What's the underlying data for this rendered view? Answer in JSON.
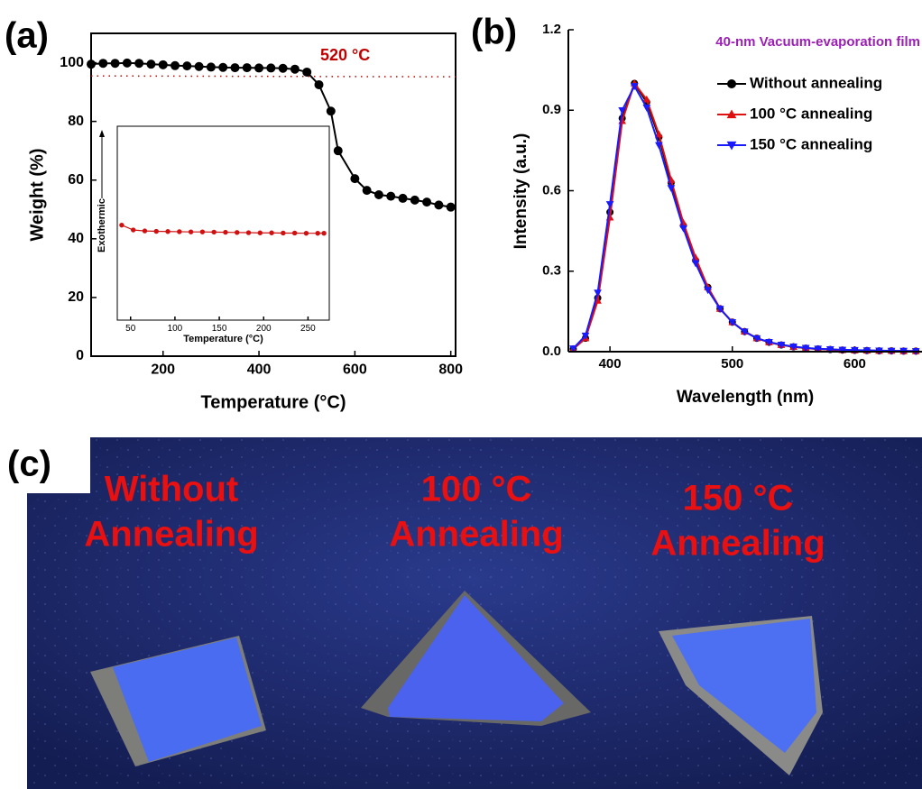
{
  "chart_data": [
    {
      "type": "line",
      "panel_label": "(a)",
      "xlabel": "Temperature (°C)",
      "ylabel": "Weight (%)",
      "x": [
        50,
        75,
        100,
        125,
        150,
        175,
        200,
        225,
        250,
        275,
        300,
        325,
        350,
        375,
        400,
        425,
        450,
        475,
        500,
        525,
        550,
        565,
        600,
        625,
        650,
        675,
        700,
        725,
        750,
        775,
        800
      ],
      "series": [
        {
          "color": "#000000",
          "marker": "circle",
          "values": [
            99.5,
            99.8,
            99.8,
            99.9,
            99.8,
            99.5,
            99.3,
            99.0,
            98.9,
            98.7,
            98.5,
            98.4,
            98.3,
            98.3,
            98.2,
            98.2,
            98.1,
            97.8,
            96.8,
            92.5,
            83.5,
            70.0,
            60.5,
            56.5,
            55.0,
            54.5,
            53.8,
            53.2,
            52.5,
            51.5,
            50.8
          ]
        }
      ],
      "reference_line": 95.5,
      "reference_color": "#c00000",
      "annotation": "520 °C",
      "xlim": [
        50,
        810
      ],
      "xticks": [
        200,
        400,
        600,
        800
      ],
      "ylim": [
        0,
        110
      ],
      "yticks": [
        0,
        20,
        40,
        60,
        80,
        100
      ]
    },
    {
      "type": "line",
      "xlabel": "Temperature (°C)",
      "ylabel": "Exothermic",
      "x": [
        40,
        53,
        66,
        79,
        92,
        105,
        118,
        131,
        144,
        157,
        170,
        183,
        196,
        209,
        222,
        235,
        248,
        261,
        268
      ],
      "series": [
        {
          "color": "#d01010",
          "marker": "circle",
          "values": [
            0.49,
            0.465,
            0.46,
            0.458,
            0.457,
            0.456,
            0.455,
            0.455,
            0.454,
            0.453,
            0.452,
            0.451,
            0.45,
            0.45,
            0.449,
            0.449,
            0.448,
            0.448,
            0.448
          ]
        }
      ],
      "xlim": [
        35,
        274
      ],
      "xticks": [
        50,
        100,
        150,
        200,
        250
      ],
      "ylim": [
        0,
        1
      ]
    },
    {
      "type": "line",
      "panel_label": "(b)",
      "title": "40-nm Vacuum-evaporation film",
      "title_color": "#9b1fb5",
      "xlabel": "Wavelength (nm)",
      "ylabel": "Intensity (a.u.)",
      "x": [
        370,
        380,
        390,
        400,
        410,
        420,
        430,
        440,
        450,
        460,
        470,
        480,
        490,
        500,
        510,
        520,
        530,
        540,
        550,
        560,
        570,
        580,
        590,
        600,
        610,
        620,
        630,
        640,
        650
      ],
      "series": [
        {
          "name": "Without annealing",
          "color": "#000000",
          "marker": "circle",
          "values": [
            0.01,
            0.05,
            0.2,
            0.52,
            0.87,
            1.0,
            0.93,
            0.8,
            0.63,
            0.47,
            0.34,
            0.24,
            0.16,
            0.11,
            0.075,
            0.05,
            0.035,
            0.025,
            0.018,
            0.013,
            0.01,
            0.008,
            0.006,
            0.005,
            0.004,
            0.003,
            0.003,
            0.002,
            0.002
          ]
        },
        {
          "name": "100 °C annealing",
          "color": "#e01010",
          "marker": "triangle",
          "values": [
            0.01,
            0.05,
            0.19,
            0.5,
            0.86,
            1.0,
            0.94,
            0.81,
            0.64,
            0.48,
            0.35,
            0.24,
            0.16,
            0.11,
            0.075,
            0.05,
            0.035,
            0.025,
            0.018,
            0.013,
            0.01,
            0.008,
            0.006,
            0.005,
            0.004,
            0.003,
            0.003,
            0.002,
            0.002
          ]
        },
        {
          "name": "150 °C annealing",
          "color": "#1a1aff",
          "marker": "triangle-down",
          "values": [
            0.012,
            0.06,
            0.22,
            0.55,
            0.9,
            0.99,
            0.91,
            0.77,
            0.61,
            0.46,
            0.33,
            0.23,
            0.16,
            0.11,
            0.075,
            0.05,
            0.036,
            0.026,
            0.019,
            0.014,
            0.011,
            0.009,
            0.007,
            0.006,
            0.005,
            0.004,
            0.003,
            0.003,
            0.002
          ]
        }
      ],
      "xlim": [
        366,
        655
      ],
      "xticks": [
        400,
        500,
        600
      ],
      "ylim": [
        0,
        1.2
      ],
      "yticks": [
        {
          "value": 0,
          "label": "0.0"
        },
        0.3,
        0.6,
        0.9,
        1.2
      ]
    }
  ],
  "photo": {
    "panel_label": "(c)",
    "labels": [
      [
        "Without",
        "Annealing"
      ],
      [
        "100 °C",
        "Annealing"
      ],
      [
        "150 °C",
        "Annealing"
      ]
    ]
  }
}
